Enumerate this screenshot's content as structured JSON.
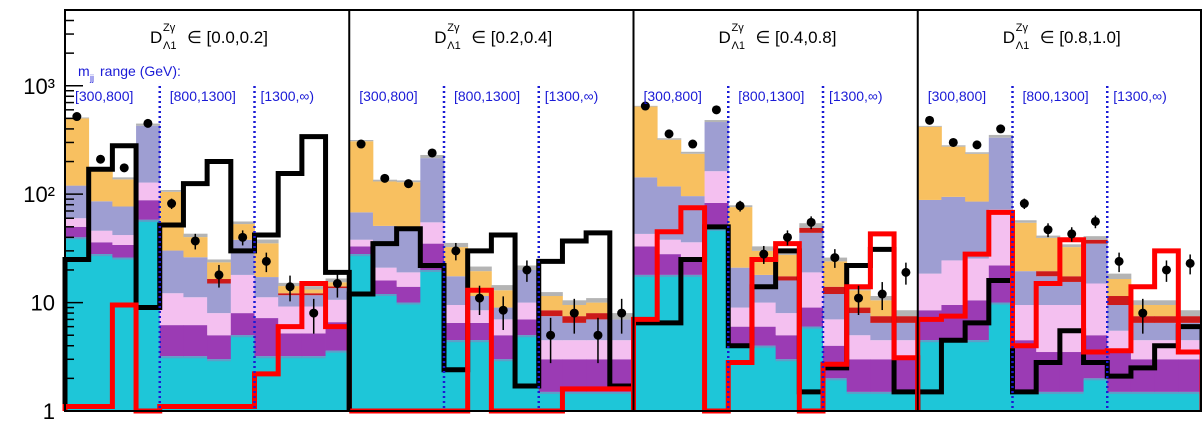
{
  "chart_data": {
    "type": "bar",
    "scale": "log",
    "ylim": [
      1,
      5000
    ],
    "y_ticks": [
      {
        "value": 1,
        "label": "1"
      },
      {
        "value": 10,
        "label": "10"
      },
      {
        "value": 100,
        "label": "10²"
      },
      {
        "value": 1000,
        "label": "10³"
      }
    ],
    "mjj_header": {
      "text": "m",
      "sub": "jj",
      "rest": " range (GeV):"
    },
    "colors": {
      "cyan": "#1ec6d8",
      "steelblue": "#5aa0c8",
      "purple": "#9b3bb4",
      "pink": "#f4c0f0",
      "lavender": "#9e9ed2",
      "crimson": "#cc1a1a",
      "orange": "#f8c060",
      "grey": "#b4b4b4",
      "black_line": "#000000",
      "red_line": "#ff0000",
      "divider": "#1a1ad6"
    },
    "panels": [
      {
        "label_main": "D",
        "label_sup": "Zγ",
        "label_sub": "Λ1",
        "label_range": "∈ [0.0,0.2]",
        "mjj_ranges": [
          "[300,800]",
          "[800,1300]",
          "[1300,∞)"
        ],
        "bins": [
          {
            "cyan": 40,
            "purple": 10,
            "pink": 10,
            "lavender": 60,
            "crimson": 0,
            "orange": 380,
            "grey": 10,
            "data": 520,
            "black": 25,
            "red": 1.1
          },
          {
            "cyan": 28,
            "purple": 8,
            "pink": 10,
            "lavender": 40,
            "crimson": 0,
            "orange": 80,
            "grey": 8,
            "data": 210,
            "black": 170,
            "red": 1.1
          },
          {
            "cyan": 26,
            "purple": 8,
            "pink": 8,
            "lavender": 35,
            "crimson": 0,
            "orange": 60,
            "grey": 6,
            "data": 175,
            "black": 280,
            "red": 9.5
          },
          {
            "cyan": 58,
            "purple": 30,
            "pink": 40,
            "lavender": 300,
            "crimson": 0,
            "orange": 0,
            "grey": 20,
            "data": 450,
            "black": 9,
            "red": 0
          },
          {
            "cyan": 3.2,
            "purple": 3,
            "pink": 6,
            "lavender": 18,
            "crimson": 0,
            "orange": 75,
            "grey": 4,
            "data": 82,
            "black": 52,
            "red": 1.1
          },
          {
            "cyan": 3.2,
            "purple": 3,
            "pink": 5,
            "lavender": 15,
            "crimson": 0,
            "orange": 14,
            "grey": 3,
            "data": 37,
            "black": 125,
            "red": 1.1
          },
          {
            "cyan": 3,
            "purple": 2,
            "pink": 3,
            "lavender": 7,
            "crimson": 1.5,
            "orange": 7,
            "grey": 1.5,
            "data": 18,
            "black": 200,
            "red": 1.1
          },
          {
            "cyan": 5,
            "purple": 3,
            "pink": 10,
            "lavender": 20,
            "crimson": 0,
            "orange": 15,
            "grey": 3,
            "data": 40,
            "black": 30,
            "red": 1.1
          },
          {
            "cyan": 3.2,
            "purple": 4,
            "pink": 4,
            "lavender": 6,
            "crimson": 0,
            "orange": 18,
            "grey": 3,
            "data": 24,
            "black": 42,
            "red": 2.2
          },
          {
            "cyan": 3.2,
            "purple": 2,
            "pink": 4,
            "lavender": 2.5,
            "crimson": 0.5,
            "orange": 2,
            "grey": 1,
            "data": 14,
            "black": 155,
            "red": 6
          },
          {
            "cyan": 3.2,
            "purple": 2,
            "pink": 4,
            "lavender": 2.5,
            "crimson": 0.5,
            "orange": 1,
            "grey": 1,
            "data": 8,
            "black": 340,
            "red": 15
          },
          {
            "cyan": 3.6,
            "purple": 3,
            "pink": 4,
            "lavender": 3,
            "crimson": 0.5,
            "orange": 1.3,
            "grey": 1.3,
            "data": 15,
            "black": 19,
            "red": 6
          }
        ]
      },
      {
        "label_main": "D",
        "label_sup": "Zγ",
        "label_sub": "Λ1",
        "label_range": "∈ [0.2,0.4]",
        "mjj_ranges": [
          "[300,800]",
          "[800,1300]",
          "[1300,∞)"
        ],
        "bins": [
          {
            "cyan": 28,
            "purple": 5,
            "pink": 5,
            "lavender": 30,
            "crimson": 0,
            "orange": 240,
            "grey": 8,
            "data": 290,
            "black": 12,
            "red": 0
          },
          {
            "cyan": 12,
            "purple": 4,
            "pink": 5,
            "lavender": 30,
            "crimson": 0,
            "orange": 80,
            "grey": 5,
            "data": 140,
            "black": 35,
            "red": 0
          },
          {
            "cyan": 10,
            "purple": 4,
            "pink": 5,
            "lavender": 30,
            "crimson": 0,
            "orange": 80,
            "grey": 5,
            "data": 125,
            "black": 48,
            "red": 0
          },
          {
            "cyan": 20,
            "purple": 15,
            "pink": 20,
            "lavender": 160,
            "crimson": 0,
            "orange": 0,
            "grey": 15,
            "data": 240,
            "black": 22,
            "red": 0
          },
          {
            "cyan": 4.5,
            "purple": 2,
            "pink": 3,
            "lavender": 8,
            "crimson": 0,
            "orange": 15,
            "grey": 3,
            "data": 30,
            "black": 2.4,
            "red": 0
          },
          {
            "cyan": 4.5,
            "purple": 2,
            "pink": 2,
            "lavender": 3,
            "crimson": 0,
            "orange": 8,
            "grey": 2,
            "data": 11,
            "black": 30,
            "red": 13
          },
          {
            "cyan": 3,
            "purple": 2,
            "pink": 2,
            "lavender": 2,
            "crimson": 0,
            "orange": 4,
            "grey": 1.5,
            "data": 8.5,
            "black": 42,
            "red": 1
          },
          {
            "cyan": 5,
            "purple": 2,
            "pink": 3,
            "lavender": 10,
            "crimson": 0,
            "orange": 0,
            "grey": 2,
            "data": 20,
            "black": 1.7,
            "red": 1
          },
          {
            "cyan": 1.5,
            "purple": 1.5,
            "pink": 1.5,
            "lavender": 3,
            "crimson": 1,
            "orange": 3,
            "grey": 1,
            "data": 5,
            "black": 24,
            "red": 0
          },
          {
            "cyan": 1.5,
            "purple": 1.5,
            "pink": 1.5,
            "lavender": 2,
            "crimson": 1,
            "orange": 2,
            "grey": 1,
            "data": 8,
            "black": 37,
            "red": 1.6
          },
          {
            "cyan": 1.5,
            "purple": 1.5,
            "pink": 1.5,
            "lavender": 2.5,
            "crimson": 1,
            "orange": 2,
            "grey": 1,
            "data": 5,
            "black": 44,
            "red": 1.6
          },
          {
            "cyan": 1.5,
            "purple": 1.5,
            "pink": 1.5,
            "lavender": 2.5,
            "crimson": 0,
            "orange": 0,
            "grey": 1,
            "data": 8,
            "black": 1.7,
            "red": 1.6
          }
        ]
      },
      {
        "label_main": "D",
        "label_sup": "Zγ",
        "label_sub": "Λ1",
        "label_range": "∈ [0.4,0.8]",
        "mjj_ranges": [
          "[300,800]",
          "[800,1300]",
          "[1300,∞)"
        ],
        "bins": [
          {
            "cyan": 18,
            "purple": 15,
            "pink": 10,
            "lavender": 100,
            "crimson": 0,
            "orange": 500,
            "grey": 10,
            "data": 650,
            "black": 6.5,
            "red": 7
          },
          {
            "cyan": 18,
            "purple": 10,
            "pink": 10,
            "lavender": 80,
            "crimson": 0,
            "orange": 200,
            "grey": 10,
            "data": 360,
            "black": 6.5,
            "red": 45
          },
          {
            "cyan": 18,
            "purple": 8,
            "pink": 10,
            "lavender": 60,
            "crimson": 0,
            "orange": 140,
            "grey": 10,
            "data": 290,
            "black": 25,
            "red": 75
          },
          {
            "cyan": 48,
            "purple": 35,
            "pink": 80,
            "lavender": 300,
            "crimson": 0,
            "orange": 0,
            "grey": 20,
            "data": 600,
            "black": 50,
            "red": 0
          },
          {
            "cyan": 4,
            "purple": 2,
            "pink": 3,
            "lavender": 12,
            "crimson": 0,
            "orange": 55,
            "grey": 3,
            "data": 78,
            "black": 4,
            "red": 2.8
          },
          {
            "cyan": 4,
            "purple": 2,
            "pink": 4,
            "lavender": 8,
            "crimson": 0,
            "orange": 12,
            "grey": 3,
            "data": 28,
            "black": 14,
            "red": 25
          },
          {
            "cyan": 3,
            "purple": 2,
            "pink": 3,
            "lavender": 8,
            "crimson": 1.5,
            "orange": 10,
            "grey": 2,
            "data": 40,
            "black": 30,
            "red": 35
          },
          {
            "cyan": 6,
            "purple": 3,
            "pink": 10,
            "lavender": 25,
            "crimson": 5,
            "orange": 0,
            "grey": 5,
            "data": 55,
            "black": 1.5,
            "red": 0
          },
          {
            "cyan": 2,
            "purple": 2,
            "pink": 3,
            "lavender": 5,
            "crimson": 2,
            "orange": 10,
            "grey": 2,
            "data": 26,
            "black": 2.5,
            "red": 2.7
          },
          {
            "cyan": 1.5,
            "purple": 1.5,
            "pink": 2,
            "lavender": 3,
            "crimson": 1,
            "orange": 4,
            "grey": 1,
            "data": 11,
            "black": 22,
            "red": 14
          },
          {
            "cyan": 1.5,
            "purple": 1.5,
            "pink": 1.5,
            "lavender": 2,
            "crimson": 1,
            "orange": 3,
            "grey": 1,
            "data": 12,
            "black": 31,
            "red": 43
          },
          {
            "cyan": 1.5,
            "purple": 1.5,
            "pink": 1.5,
            "lavender": 2,
            "crimson": 1,
            "orange": 0,
            "grey": 1,
            "data": 19,
            "black": 1.5,
            "red": 3.1
          }
        ]
      },
      {
        "label_main": "D",
        "label_sup": "Zγ",
        "label_sub": "Λ1",
        "label_range": "∈ [0.8,1.0]",
        "mjj_ranges": [
          "[300,800]",
          "[800,1300]",
          "[1300,∞)"
        ],
        "bins": [
          {
            "cyan": 4.5,
            "purple": 4,
            "pink": 10,
            "lavender": 70,
            "crimson": 0,
            "orange": 330,
            "grey": 8,
            "data": 480,
            "black": 1.5,
            "red": 7
          },
          {
            "cyan": 4.5,
            "purple": 5,
            "pink": 15,
            "lavender": 70,
            "crimson": 0,
            "orange": 180,
            "grey": 8,
            "data": 300,
            "black": 4.5,
            "red": 7.5
          },
          {
            "cyan": 4.5,
            "purple": 6,
            "pink": 15,
            "lavender": 60,
            "crimson": 0,
            "orange": 150,
            "grey": 8,
            "data": 285,
            "black": 6.5,
            "red": 28
          },
          {
            "cyan": 10,
            "purple": 12,
            "pink": 50,
            "lavender": 260,
            "crimson": 0,
            "orange": 0,
            "grey": 20,
            "data": 400,
            "black": 16,
            "red": 68
          },
          {
            "cyan": 1.5,
            "purple": 3,
            "pink": 5,
            "lavender": 10,
            "crimson": 0,
            "orange": 35,
            "grey": 3,
            "data": 82,
            "black": 1.5,
            "red": 4
          },
          {
            "cyan": 1.5,
            "purple": 2,
            "pink": 6,
            "lavender": 8,
            "crimson": 2,
            "orange": 20,
            "grey": 2,
            "data": 47,
            "black": 2.8,
            "red": 15
          },
          {
            "cyan": 1.5,
            "purple": 2,
            "pink": 6,
            "lavender": 6,
            "crimson": 2,
            "orange": 15,
            "grey": 2,
            "data": 43,
            "black": 5.5,
            "red": 38
          },
          {
            "cyan": 2,
            "purple": 3,
            "pink": 10,
            "lavender": 20,
            "crimson": 3,
            "orange": 0,
            "grey": 3,
            "data": 56,
            "black": 2.8,
            "red": 3.5
          },
          {
            "cyan": 1.5,
            "purple": 2,
            "pink": 2,
            "lavender": 4,
            "crimson": 2,
            "orange": 5,
            "grey": 2,
            "data": 24,
            "black": 2.1,
            "red": 3.6
          },
          {
            "cyan": 1.5,
            "purple": 1.5,
            "pink": 1.5,
            "lavender": 2,
            "crimson": 1,
            "orange": 2,
            "grey": 1,
            "data": 8,
            "black": 2.5,
            "red": 14
          },
          {
            "cyan": 1.5,
            "purple": 1.5,
            "pink": 1.5,
            "lavender": 2,
            "crimson": 1,
            "orange": 2,
            "grey": 1,
            "data": 20,
            "black": 4,
            "red": 30
          },
          {
            "cyan": 1.5,
            "purple": 1.5,
            "pink": 1.5,
            "lavender": 2,
            "crimson": 1,
            "orange": 0,
            "grey": 1,
            "data": 23,
            "black": 6,
            "red": 3.5
          }
        ]
      }
    ]
  }
}
